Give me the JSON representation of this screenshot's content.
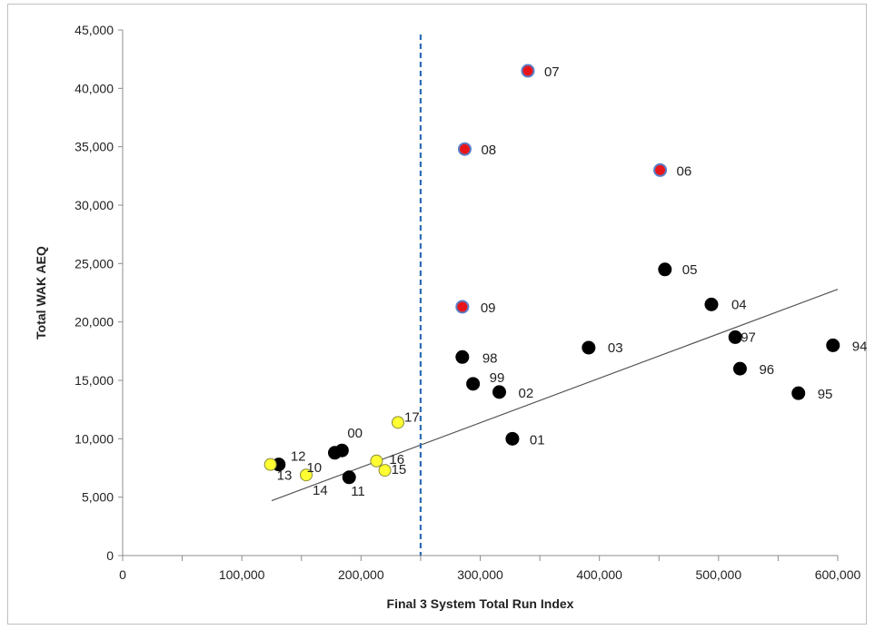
{
  "chart_data": {
    "type": "scatter",
    "xlabel": "Final 3 System Total Run Index",
    "ylabel": "Total WAK AEQ",
    "xlim": [
      0,
      600000
    ],
    "ylim": [
      0,
      45000
    ],
    "xticks": [
      0,
      100000,
      200000,
      300000,
      400000,
      500000,
      600000
    ],
    "xtick_labels": [
      "0",
      "100,000",
      "200,000",
      "300,000",
      "400,000",
      "500,000",
      "600,000"
    ],
    "yticks": [
      0,
      5000,
      10000,
      15000,
      20000,
      25000,
      30000,
      35000,
      40000,
      45000
    ],
    "ytick_labels": [
      "0",
      "5,000",
      "10,000",
      "15,000",
      "20,000",
      "25,000",
      "30,000",
      "35,000",
      "40,000",
      "45,000"
    ],
    "grid": false,
    "legend": false,
    "reference_line": {
      "x": 250000,
      "style": "dashed",
      "color": "#2e6db4"
    },
    "trendline": {
      "x": [
        125000,
        600000
      ],
      "y": [
        4700,
        22800
      ],
      "color": "#555555"
    },
    "colors": {
      "black": "#000000",
      "red": "#e8161b",
      "yellow": "#ffff33",
      "red_outline": "#5b7fc7"
    },
    "points": [
      {
        "label": "07",
        "x": 340000,
        "y": 41500,
        "color": "red"
      },
      {
        "label": "08",
        "x": 287000,
        "y": 34800,
        "color": "red"
      },
      {
        "label": "06",
        "x": 451000,
        "y": 33000,
        "color": "red"
      },
      {
        "label": "09",
        "x": 285000,
        "y": 21300,
        "color": "red"
      },
      {
        "label": "05",
        "x": 455000,
        "y": 24500,
        "color": "black"
      },
      {
        "label": "04",
        "x": 494000,
        "y": 21500,
        "color": "black"
      },
      {
        "label": "97",
        "x": 514000,
        "y": 18700,
        "color": "black"
      },
      {
        "label": "94",
        "x": 596000,
        "y": 18000,
        "color": "black"
      },
      {
        "label": "96",
        "x": 518000,
        "y": 16000,
        "color": "black"
      },
      {
        "label": "95",
        "x": 567000,
        "y": 13900,
        "color": "black"
      },
      {
        "label": "03",
        "x": 391000,
        "y": 17800,
        "color": "black"
      },
      {
        "label": "98",
        "x": 285000,
        "y": 17000,
        "color": "black"
      },
      {
        "label": "99",
        "x": 294000,
        "y": 14700,
        "color": "black"
      },
      {
        "label": "02",
        "x": 316000,
        "y": 14000,
        "color": "black"
      },
      {
        "label": "01",
        "x": 327000,
        "y": 10000,
        "color": "black"
      },
      {
        "label": "00",
        "x": 184000,
        "y": 9000,
        "color": "black"
      },
      {
        "label": "10",
        "x": 178000,
        "y": 8800,
        "color": "black"
      },
      {
        "label": "12",
        "x": 131000,
        "y": 7800,
        "color": "black"
      },
      {
        "label": "11",
        "x": 190000,
        "y": 6700,
        "color": "black"
      },
      {
        "label": "17",
        "x": 231000,
        "y": 11400,
        "color": "yellow"
      },
      {
        "label": "16",
        "x": 213000,
        "y": 8100,
        "color": "yellow"
      },
      {
        "label": "15",
        "x": 220000,
        "y": 7300,
        "color": "yellow"
      },
      {
        "label": "13",
        "x": 124000,
        "y": 7800,
        "color": "yellow"
      },
      {
        "label": "14",
        "x": 154000,
        "y": 6900,
        "color": "yellow"
      }
    ]
  }
}
